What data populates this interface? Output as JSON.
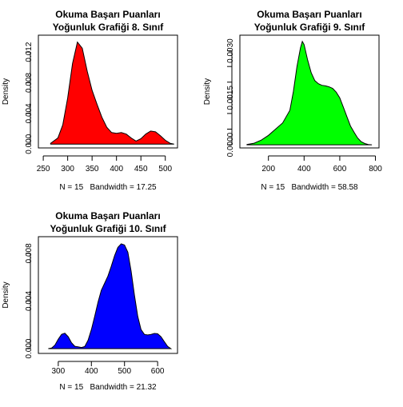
{
  "chart_data": [
    {
      "type": "area",
      "title": [
        "Okuma Başarı Puanları",
        "Yoğunluk Grafiği 8. Sınıf"
      ],
      "ylabel": "Density",
      "xlabel": "N = 15   Bandwidth = 17.25",
      "fill": "#ff0000",
      "xlim": [
        240,
        525
      ],
      "ylim": [
        -0.0005,
        0.0142
      ],
      "xticks": [
        250,
        300,
        350,
        400,
        450,
        500
      ],
      "yticks": [
        0.0,
        0.004,
        0.008,
        0.012
      ],
      "ytick_labels": [
        "0.000",
        "0.004",
        "0.008",
        "0.012"
      ],
      "x": [
        265,
        280,
        290,
        300,
        310,
        320,
        330,
        340,
        350,
        360,
        370,
        380,
        390,
        400,
        410,
        420,
        430,
        440,
        450,
        460,
        470,
        480,
        490,
        500,
        510,
        518
      ],
      "y": [
        0.0001,
        0.0008,
        0.0025,
        0.006,
        0.0105,
        0.0133,
        0.0125,
        0.0095,
        0.007,
        0.0052,
        0.0035,
        0.0022,
        0.0015,
        0.0014,
        0.0015,
        0.0013,
        0.0008,
        0.0004,
        0.0007,
        0.0013,
        0.0017,
        0.0016,
        0.0011,
        0.0005,
        0.0001,
        0.0
      ]
    },
    {
      "type": "area",
      "title": [
        "Okuma Başarı Puanları",
        "Yoğunluk Grafiği 9. Sınıf"
      ],
      "ylabel": "Density",
      "xlabel": "N = 15   Bandwidth = 58.58",
      "fill": "#00ff00",
      "xlim": [
        40,
        820
      ],
      "ylim": [
        -0.0001,
        0.0035
      ],
      "xticks": [
        200,
        400,
        600,
        800
      ],
      "yticks": [
        0.0,
        0.0005,
        0.001,
        0.0015,
        0.002,
        0.0025,
        0.003
      ],
      "ytick_labels": [
        "0.0000",
        "",
        "",
        "0.0015",
        "",
        "",
        "0.0030"
      ],
      "x": [
        80,
        120,
        160,
        200,
        240,
        280,
        320,
        340,
        360,
        380,
        390,
        400,
        420,
        440,
        460,
        480,
        500,
        520,
        540,
        560,
        580,
        600,
        620,
        640,
        660,
        680,
        700,
        720,
        740,
        760,
        780
      ],
      "y": [
        1e-05,
        5e-05,
        0.00015,
        0.0003,
        0.0005,
        0.0007,
        0.0011,
        0.0017,
        0.0025,
        0.0031,
        0.0033,
        0.0032,
        0.0027,
        0.0023,
        0.00205,
        0.00195,
        0.0019,
        0.00188,
        0.00185,
        0.0018,
        0.00168,
        0.0015,
        0.0012,
        0.0009,
        0.0006,
        0.0004,
        0.00022,
        0.0001,
        4e-05,
        1e-05,
        0.0
      ]
    },
    {
      "type": "area",
      "title": [
        "Okuma Başarı Puanları",
        "Yoğunluk Grafiği 10. Sınıf"
      ],
      "ylabel": "Density",
      "xlabel": "N = 15   Bandwidth = 21.32",
      "fill": "#0000ff",
      "xlim": [
        240,
        660
      ],
      "ylim": [
        -0.0004,
        0.0094
      ],
      "xticks": [
        300,
        400,
        500,
        600
      ],
      "yticks": [
        0.0,
        0.004,
        0.008
      ],
      "ytick_labels": [
        "0.000",
        "0.004",
        "0.008"
      ],
      "x": [
        270,
        280,
        290,
        300,
        310,
        320,
        330,
        340,
        350,
        360,
        370,
        380,
        390,
        400,
        410,
        420,
        430,
        440,
        450,
        460,
        470,
        480,
        490,
        500,
        510,
        520,
        530,
        540,
        550,
        560,
        570,
        580,
        590,
        600,
        610,
        620,
        630,
        640
      ],
      "y": [
        0.0,
        5e-05,
        0.0003,
        0.0008,
        0.0012,
        0.0013,
        0.001,
        0.0005,
        0.0002,
        0.00015,
        0.0001,
        0.00018,
        0.0007,
        0.0016,
        0.0027,
        0.0039,
        0.0049,
        0.0055,
        0.0061,
        0.0069,
        0.0078,
        0.0085,
        0.0088,
        0.0087,
        0.0081,
        0.0065,
        0.0045,
        0.0027,
        0.0016,
        0.0012,
        0.00115,
        0.0012,
        0.00128,
        0.00125,
        0.001,
        0.0006,
        0.0002,
        0.0
      ]
    }
  ]
}
